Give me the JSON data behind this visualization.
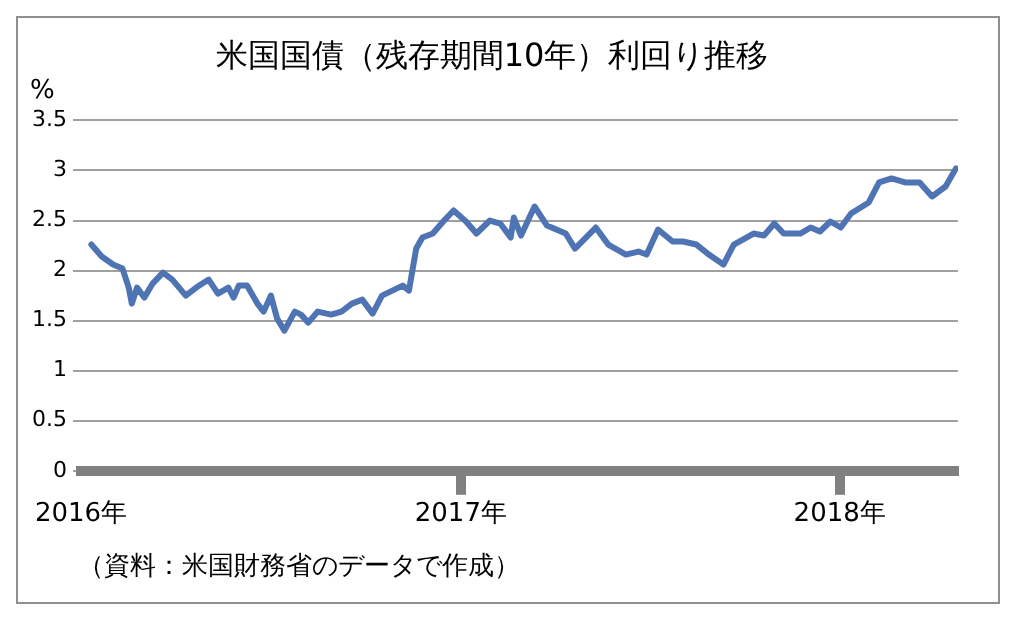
{
  "chart_data": {
    "type": "line",
    "title": "米国国債（残存期間10年）利回り推移",
    "ylabel": "%",
    "annotations": [
      "（資料：米国財務省のデータで作成）"
    ],
    "x": [
      "2016-01-11",
      "2016-01-21",
      "2016-02-01",
      "2016-02-10",
      "2016-02-16",
      "2016-02-19",
      "2016-02-24",
      "2016-03-02",
      "2016-03-10",
      "2016-03-20",
      "2016-03-29",
      "2016-04-11",
      "2016-04-21",
      "2016-05-03",
      "2016-05-12",
      "2016-05-22",
      "2016-05-27",
      "2016-06-01",
      "2016-06-09",
      "2016-06-19",
      "2016-06-25",
      "2016-07-02",
      "2016-07-08",
      "2016-07-15",
      "2016-07-25",
      "2016-07-31",
      "2016-08-07",
      "2016-08-16",
      "2016-08-29",
      "2016-09-08",
      "2016-09-18",
      "2016-09-28",
      "2016-10-08",
      "2016-10-17",
      "2016-10-27",
      "2016-11-06",
      "2016-11-12",
      "2016-11-19",
      "2016-11-25",
      "2016-12-05",
      "2016-12-15",
      "2016-12-25",
      "2017-01-06",
      "2017-01-16",
      "2017-01-29",
      "2017-02-08",
      "2017-02-18",
      "2017-02-21",
      "2017-02-28",
      "2017-03-13",
      "2017-03-25",
      "2017-04-12",
      "2017-04-21",
      "2017-05-11",
      "2017-05-23",
      "2017-06-09",
      "2017-06-21",
      "2017-06-29",
      "2017-07-10",
      "2017-07-24",
      "2017-08-03",
      "2017-08-16",
      "2017-08-28",
      "2017-09-11",
      "2017-09-21",
      "2017-10-10",
      "2017-10-20",
      "2017-10-30",
      "2017-11-08",
      "2017-11-24",
      "2017-12-04",
      "2017-12-13",
      "2017-12-23",
      "2018-01-02",
      "2018-01-12",
      "2018-01-29",
      "2018-02-08",
      "2018-02-20",
      "2018-03-05",
      "2018-03-19",
      "2018-03-31",
      "2018-04-13",
      "2018-04-23"
    ],
    "series": [
      {
        "color": "#4f74b3",
        "values": [
          2.26,
          2.14,
          2.06,
          2.02,
          1.83,
          1.67,
          1.83,
          1.73,
          1.87,
          1.98,
          1.91,
          1.75,
          1.83,
          1.91,
          1.77,
          1.83,
          1.73,
          1.85,
          1.85,
          1.67,
          1.59,
          1.75,
          1.52,
          1.4,
          1.59,
          1.56,
          1.48,
          1.59,
          1.56,
          1.59,
          1.67,
          1.71,
          1.57,
          1.75,
          1.8,
          1.85,
          1.8,
          2.22,
          2.33,
          2.37,
          2.49,
          2.6,
          2.49,
          2.37,
          2.5,
          2.47,
          2.33,
          2.53,
          2.35,
          2.64,
          2.45,
          2.37,
          2.22,
          2.43,
          2.26,
          2.16,
          2.19,
          2.16,
          2.41,
          2.29,
          2.29,
          2.26,
          2.16,
          2.06,
          2.26,
          2.37,
          2.35,
          2.47,
          2.37,
          2.37,
          2.43,
          2.39,
          2.49,
          2.43,
          2.57,
          2.68,
          2.88,
          2.92,
          2.88,
          2.88,
          2.74,
          2.84,
          3.02
        ]
      }
    ],
    "xlim": [
      "2016-01-01",
      "2018-04-25"
    ],
    "xticks": [
      {
        "value": "2016-01-01",
        "label": "2016年"
      },
      {
        "value": "2017-01-01",
        "label": "2017年"
      },
      {
        "value": "2018-01-01",
        "label": "2018年"
      }
    ],
    "ylim": [
      0,
      3.5
    ],
    "yticks": [
      0,
      0.5,
      1,
      1.5,
      2,
      2.5,
      3,
      3.5
    ],
    "grid": "y",
    "legend": false,
    "marker": "none",
    "line_style": "solid"
  }
}
